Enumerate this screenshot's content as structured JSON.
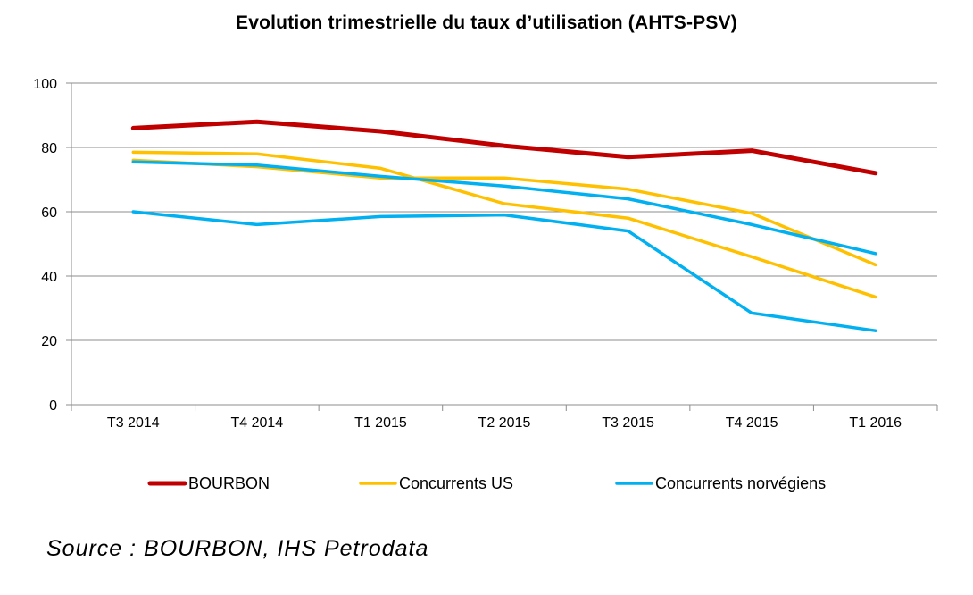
{
  "chart_data": {
    "type": "line",
    "title": "Evolution trimestrielle du taux d’utilisation (AHTS-PSV)",
    "xlabel": "",
    "ylabel": "",
    "categories": [
      "T3 2014",
      "T4 2014",
      "T1 2015",
      "T2 2015",
      "T3 2015",
      "T4 2015",
      "T1 2016"
    ],
    "ylim": [
      0,
      100
    ],
    "yticks": [
      0,
      20,
      40,
      60,
      80,
      100
    ],
    "grid": true,
    "legend_position": "bottom",
    "series": [
      {
        "name": "BOURBON",
        "color": "#c00000",
        "values": [
          86,
          88,
          85,
          80.5,
          77,
          79,
          72
        ]
      },
      {
        "name": "Concurrents US",
        "color": "#ffc000",
        "values": [
          78.5,
          78,
          73.5,
          62.5,
          58,
          46,
          33.5
        ]
      },
      {
        "name": "Concurrents US",
        "color": "#ffc000",
        "values": [
          76,
          74,
          70.5,
          70.5,
          67,
          59.5,
          43.5
        ]
      },
      {
        "name": "Concurrents norvégiens",
        "color": "#00b0f0",
        "values": [
          75.5,
          74.5,
          71,
          68,
          64,
          56,
          47
        ]
      },
      {
        "name": "Concurrents norvégiens",
        "color": "#00b0f0",
        "values": [
          60,
          56,
          58.5,
          59,
          54,
          28.5,
          23
        ]
      }
    ],
    "legend": [
      {
        "label": "BOURBON",
        "color": "#c00000"
      },
      {
        "label": "Concurrents US",
        "color": "#ffc000"
      },
      {
        "label": "Concurrents norvégiens",
        "color": "#00b0f0"
      }
    ]
  },
  "source": "Source  : BOURBON, IHS Petrodata"
}
